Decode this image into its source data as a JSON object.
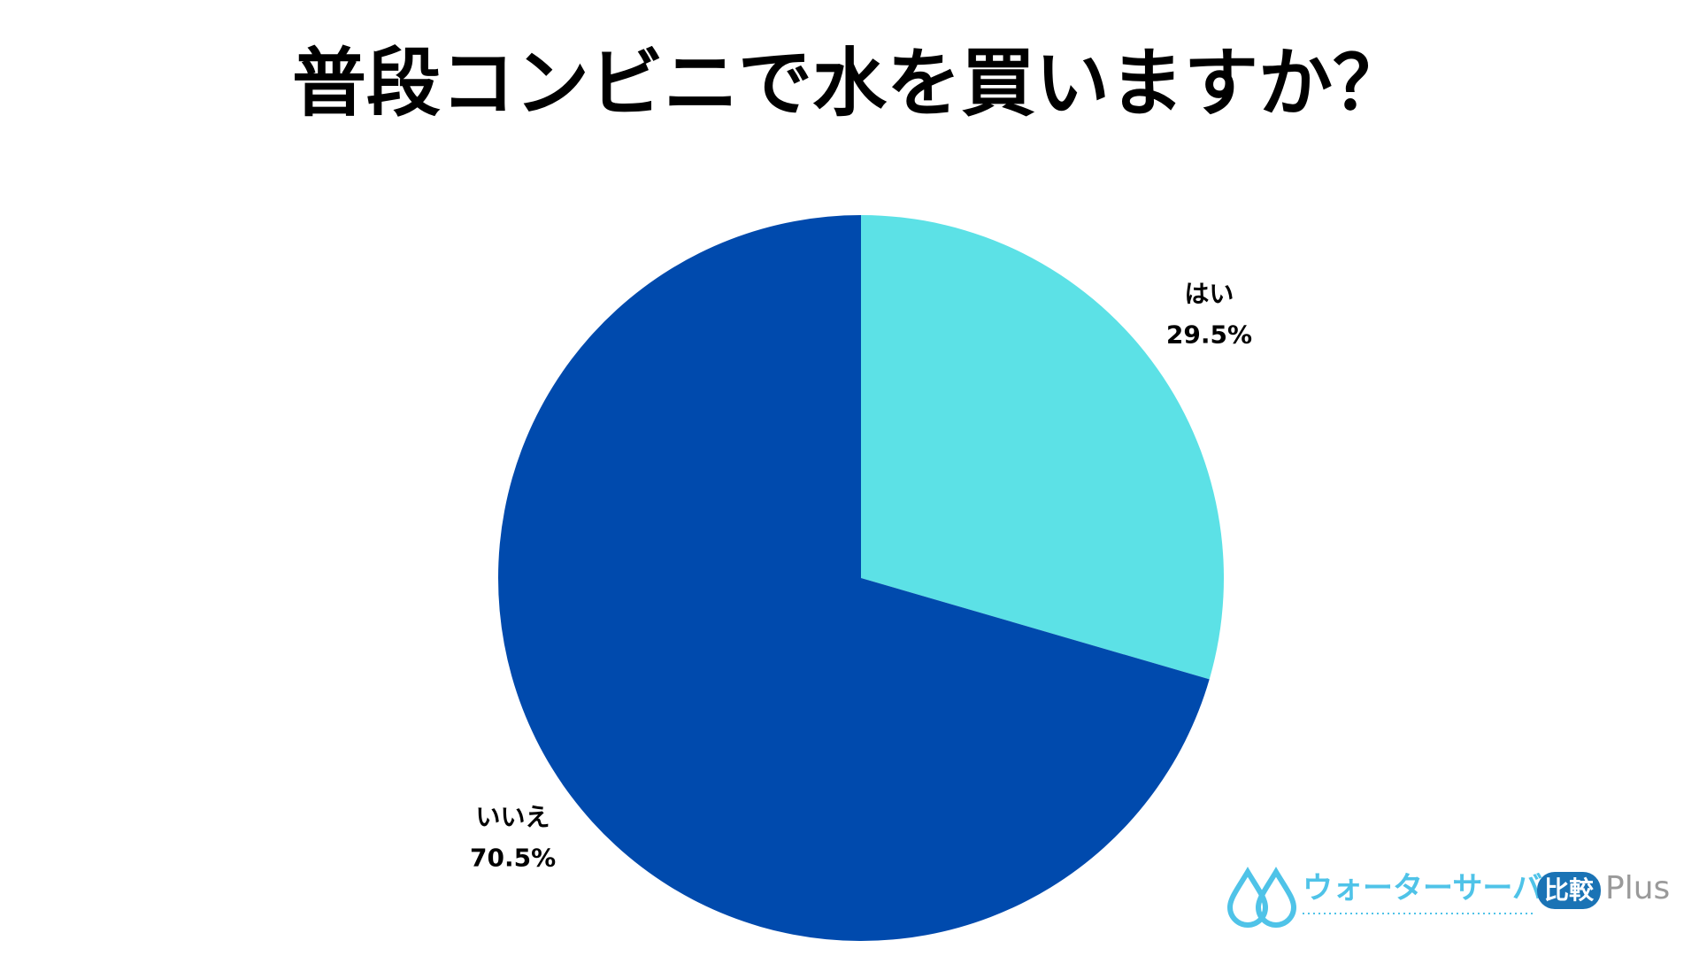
{
  "chart_data": {
    "type": "pie",
    "title": "普段コンビニで水を買いますか？",
    "categories": [
      "はい",
      "いいえ"
    ],
    "values": [
      29.5,
      70.5
    ],
    "value_labels": [
      "29.5%",
      "70.5%"
    ],
    "colors": [
      "#5ce1e6",
      "#004aad"
    ],
    "logo": [
      "ウォーターサーバー",
      "比較",
      "Plus"
    ]
  }
}
